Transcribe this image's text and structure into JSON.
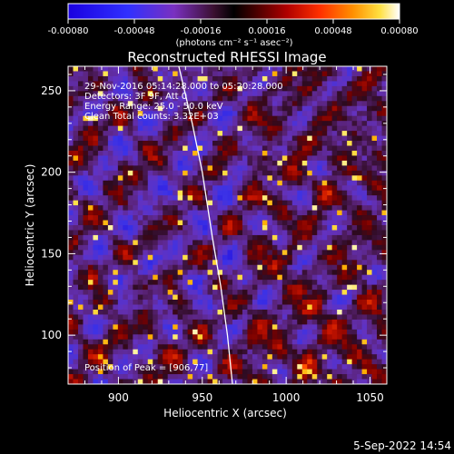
{
  "colorbar": {
    "ticks": [
      "-0.00080",
      "-0.00048",
      "-0.00016",
      "0.00016",
      "0.00048",
      "0.00080"
    ],
    "unit_label": "(photons cm⁻² s⁻¹ asec⁻²)",
    "range": [
      -0.0008,
      0.0008
    ]
  },
  "chart_data": {
    "type": "heatmap",
    "title": "Reconstructed RHESSI Image",
    "xlabel": "Heliocentric X (arcsec)",
    "ylabel": "Heliocentric Y (arcsec)",
    "xlim": [
      870,
      1060
    ],
    "ylim": [
      70,
      265
    ],
    "xticks": [
      900,
      950,
      1000,
      1050
    ],
    "yticks": [
      100,
      150,
      200,
      250
    ],
    "limb_x_at_y": [
      [
        936,
        265
      ],
      [
        944,
        230
      ],
      [
        950,
        200
      ],
      [
        956,
        160
      ],
      [
        961,
        130
      ],
      [
        965,
        100
      ],
      [
        968,
        70
      ]
    ],
    "peak": [
      906,
      77
    ],
    "info_lines": [
      "29-Nov-2016 05:14:28.000 to 05:20:28.000",
      "Detectors: 3F 9F, Att 0",
      "Energy Range: 25.0 - 50.0 keV",
      "Clean     Total counts: 3.32E+03"
    ],
    "peak_label": "Position of Peak = [906,77]"
  },
  "footer": {
    "timestamp": "5-Sep-2022 14:54"
  }
}
